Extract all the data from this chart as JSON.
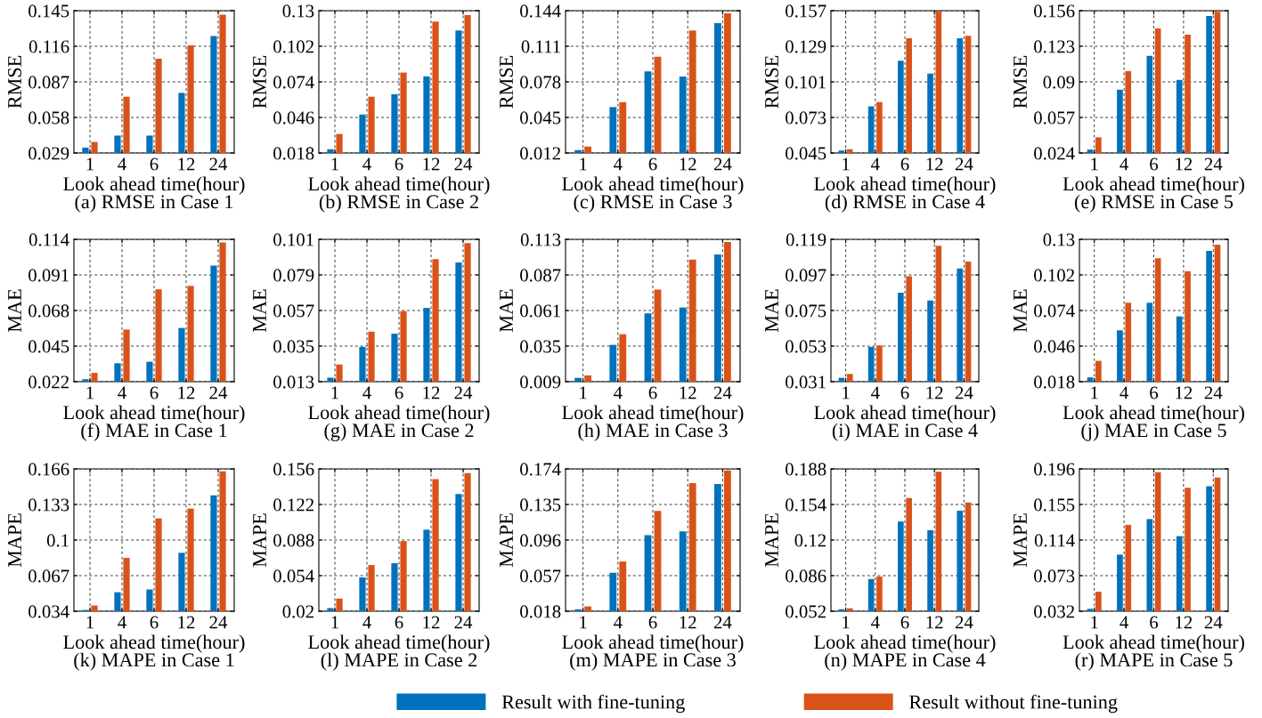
{
  "chart_data": [
    {
      "type": "bar",
      "title": "(a) RMSE in Case 1",
      "xlabel": "Look ahead time(hour)",
      "ylabel": "RMSE",
      "categories": [
        "1",
        "4",
        "6",
        "12",
        "24"
      ],
      "ylim": [
        0.029,
        0.145
      ],
      "yticks": [
        0.029,
        0.058,
        0.087,
        0.116,
        0.145
      ],
      "grid": true,
      "legend": "bottom",
      "series": [
        {
          "name": "Result with fine-tuning",
          "color": "#0072bd",
          "values": [
            0.0334,
            0.0432,
            0.0432,
            0.078,
            0.1244
          ]
        },
        {
          "name": "Result without fine-tuning",
          "color": "#d95319",
          "values": [
            0.038,
            0.0749,
            0.1059,
            0.1167,
            0.1417
          ]
        }
      ]
    },
    {
      "type": "bar",
      "title": "(b) RMSE in Case 2",
      "xlabel": "Look ahead time(hour)",
      "ylabel": "RMSE",
      "categories": [
        "1",
        "4",
        "6",
        "12",
        "24"
      ],
      "ylim": [
        0.018,
        0.13
      ],
      "yticks": [
        0.018,
        0.046,
        0.074,
        0.102,
        0.13
      ],
      "grid": true,
      "series": [
        {
          "color": "#0072bd",
          "values": [
            0.021,
            0.0483,
            0.0643,
            0.0783,
            0.1145
          ]
        },
        {
          "color": "#d95319",
          "values": [
            0.033,
            0.0623,
            0.0813,
            0.1215,
            0.1265
          ]
        }
      ]
    },
    {
      "type": "bar",
      "title": "(c) RMSE in Case 3",
      "xlabel": "Look ahead time(hour)",
      "ylabel": "RMSE",
      "categories": [
        "1",
        "4",
        "6",
        "12",
        "24"
      ],
      "ylim": [
        0.012,
        0.144
      ],
      "yticks": [
        0.012,
        0.045,
        0.078,
        0.111,
        0.144
      ],
      "grid": true,
      "series": [
        {
          "color": "#0072bd",
          "values": [
            0.0147,
            0.0546,
            0.0876,
            0.083,
            0.1325
          ]
        },
        {
          "color": "#d95319",
          "values": [
            0.018,
            0.0592,
            0.1013,
            0.1256,
            0.1416
          ]
        }
      ]
    },
    {
      "type": "bar",
      "title": "(d) RMSE in Case 4",
      "xlabel": "Look ahead time(hour)",
      "ylabel": "RMSE",
      "categories": [
        "1",
        "4",
        "6",
        "12",
        "24"
      ],
      "ylim": [
        0.045,
        0.157
      ],
      "yticks": [
        0.045,
        0.073,
        0.101,
        0.129,
        0.157
      ],
      "grid": true,
      "series": [
        {
          "color": "#0072bd",
          "values": [
            0.047,
            0.0817,
            0.1176,
            0.1075,
            0.1353
          ]
        },
        {
          "color": "#d95319",
          "values": [
            0.048,
            0.0851,
            0.1353,
            0.1565,
            0.1373
          ]
        }
      ]
    },
    {
      "type": "bar",
      "title": "(e) RMSE in Case 5",
      "xlabel": "Look ahead time(hour)",
      "ylabel": "RMSE",
      "categories": [
        "1",
        "4",
        "6",
        "12",
        "24"
      ],
      "ylim": [
        0.024,
        0.156
      ],
      "yticks": [
        0.024,
        0.057,
        0.09,
        0.123,
        0.156
      ],
      "grid": true,
      "series": [
        {
          "color": "#0072bd",
          "values": [
            0.0272,
            0.0827,
            0.1141,
            0.0918,
            0.151
          ]
        },
        {
          "color": "#d95319",
          "values": [
            0.0386,
            0.1,
            0.1396,
            0.1337,
            0.155
          ]
        }
      ]
    },
    {
      "type": "bar",
      "title": "(f) MAE in Case 1",
      "xlabel": "Look ahead time(hour)",
      "ylabel": "MAE",
      "categories": [
        "1",
        "4",
        "6",
        "12",
        "24"
      ],
      "ylim": [
        0.022,
        0.114
      ],
      "yticks": [
        0.022,
        0.045,
        0.068,
        0.091,
        0.114
      ],
      "grid": true,
      "series": [
        {
          "color": "#0072bd",
          "values": [
            0.0236,
            0.0339,
            0.0349,
            0.0567,
            0.097
          ]
        },
        {
          "color": "#d95319",
          "values": [
            0.0277,
            0.0557,
            0.0817,
            0.0839,
            0.112
          ]
        }
      ]
    },
    {
      "type": "bar",
      "title": "(g) MAE in Case 2",
      "xlabel": "Look ahead time(hour)",
      "ylabel": "MAE",
      "categories": [
        "1",
        "4",
        "6",
        "12",
        "24"
      ],
      "ylim": [
        0.013,
        0.101
      ],
      "yticks": [
        0.013,
        0.035,
        0.057,
        0.079,
        0.101
      ],
      "grid": true,
      "series": [
        {
          "color": "#0072bd",
          "values": [
            0.0155,
            0.0345,
            0.0427,
            0.0586,
            0.0867
          ]
        },
        {
          "color": "#d95319",
          "values": [
            0.0236,
            0.0439,
            0.0566,
            0.0887,
            0.0987
          ]
        }
      ]
    },
    {
      "type": "bar",
      "title": "(h) MAE in Case 3",
      "xlabel": "Look ahead time(hour)",
      "ylabel": "MAE",
      "categories": [
        "1",
        "4",
        "6",
        "12",
        "24"
      ],
      "ylim": [
        0.009,
        0.113
      ],
      "yticks": [
        0.009,
        0.035,
        0.061,
        0.087,
        0.113
      ],
      "grid": true,
      "series": [
        {
          "color": "#0072bd",
          "values": [
            0.0118,
            0.0359,
            0.0589,
            0.0632,
            0.102
          ]
        },
        {
          "color": "#d95319",
          "values": [
            0.0136,
            0.0437,
            0.0763,
            0.0982,
            0.111
          ]
        }
      ]
    },
    {
      "type": "bar",
      "title": "(i) MAE in Case 4",
      "xlabel": "Look ahead time(hour)",
      "ylabel": "MAE",
      "categories": [
        "1",
        "4",
        "6",
        "12",
        "24"
      ],
      "ylim": [
        0.031,
        0.119
      ],
      "yticks": [
        0.031,
        0.053,
        0.075,
        0.097,
        0.119
      ],
      "grid": true,
      "series": [
        {
          "color": "#0072bd",
          "values": [
            0.0334,
            0.0525,
            0.086,
            0.0812,
            0.101
          ]
        },
        {
          "color": "#d95319",
          "values": [
            0.0358,
            0.0534,
            0.0962,
            0.115,
            0.1052
          ]
        }
      ]
    },
    {
      "type": "bar",
      "title": "(j) MAE in Case 5",
      "xlabel": "Look ahead time(hour)",
      "ylabel": "MAE",
      "categories": [
        "1",
        "4",
        "6",
        "12",
        "24"
      ],
      "ylim": [
        0.018,
        0.13
      ],
      "yticks": [
        0.018,
        0.046,
        0.074,
        0.102,
        0.13
      ],
      "grid": true,
      "series": [
        {
          "color": "#0072bd",
          "values": [
            0.0214,
            0.0584,
            0.0801,
            0.0694,
            0.1209
          ]
        },
        {
          "color": "#d95319",
          "values": [
            0.0344,
            0.0801,
            0.1152,
            0.1049,
            0.1258
          ]
        }
      ]
    },
    {
      "type": "bar",
      "title": "(k) MAPE in Case 1",
      "xlabel": "Look ahead time(hour)",
      "ylabel": "MAPE",
      "categories": [
        "1",
        "4",
        "6",
        "12",
        "24"
      ],
      "ylim": [
        0.034,
        0.166
      ],
      "yticks": [
        0.034,
        0.067,
        0.1,
        0.133,
        0.166
      ],
      "grid": true,
      "series": [
        {
          "color": "#0072bd",
          "values": [
            0.0352,
            0.0516,
            0.0542,
            0.0882,
            0.1415
          ]
        },
        {
          "color": "#d95319",
          "values": [
            0.0393,
            0.0835,
            0.1201,
            0.1292,
            0.1637
          ]
        }
      ]
    },
    {
      "type": "bar",
      "title": "(l) MAPE in Case 2",
      "xlabel": "Look ahead time(hour)",
      "ylabel": "MAPE",
      "categories": [
        "1",
        "4",
        "6",
        "12",
        "24"
      ],
      "ylim": [
        0.02,
        0.156
      ],
      "yticks": [
        0.02,
        0.054,
        0.088,
        0.122,
        0.156
      ],
      "grid": true,
      "series": [
        {
          "color": "#0072bd",
          "values": [
            0.023,
            0.0523,
            0.0659,
            0.0979,
            0.132
          ]
        },
        {
          "color": "#d95319",
          "values": [
            0.0321,
            0.0641,
            0.087,
            0.1462,
            0.152
          ]
        }
      ]
    },
    {
      "type": "bar",
      "title": "(m) MAPE in Case 3",
      "xlabel": "Look ahead time(hour)",
      "ylabel": "MAPE",
      "categories": [
        "1",
        "4",
        "6",
        "12",
        "24"
      ],
      "ylim": [
        0.018,
        0.174
      ],
      "yticks": [
        0.018,
        0.057,
        0.096,
        0.135,
        0.174
      ],
      "grid": true,
      "series": [
        {
          "color": "#0072bd",
          "values": [
            0.0201,
            0.0602,
            0.1013,
            0.1056,
            0.1574
          ]
        },
        {
          "color": "#d95319",
          "values": [
            0.0233,
            0.0725,
            0.128,
            0.1585,
            0.1724
          ]
        }
      ]
    },
    {
      "type": "bar",
      "title": "(n) MAPE in Case 4",
      "xlabel": "Look ahead time(hour)",
      "ylabel": "MAPE",
      "categories": [
        "1",
        "4",
        "6",
        "12",
        "24"
      ],
      "ylim": [
        0.052,
        0.188
      ],
      "yticks": [
        0.052,
        0.086,
        0.12,
        0.154,
        0.188
      ],
      "grid": true,
      "series": [
        {
          "color": "#0072bd",
          "values": [
            0.0539,
            0.0828,
            0.1377,
            0.1294,
            0.148
          ]
        },
        {
          "color": "#d95319",
          "values": [
            0.0548,
            0.0851,
            0.1601,
            0.1853,
            0.1559
          ]
        }
      ]
    },
    {
      "type": "bar",
      "title": "(r) MAPE in Case 5",
      "xlabel": "Look ahead time(hour)",
      "ylabel": "MAPE",
      "categories": [
        "1",
        "4",
        "6",
        "12",
        "24"
      ],
      "ylim": [
        0.032,
        0.196
      ],
      "yticks": [
        0.032,
        0.073,
        0.114,
        0.155,
        0.196
      ],
      "grid": true,
      "series": [
        {
          "color": "#0072bd",
          "values": [
            0.0348,
            0.0972,
            0.1382,
            0.1185,
            0.1759
          ]
        },
        {
          "color": "#d95319",
          "values": [
            0.0545,
            0.1315,
            0.1922,
            0.1742,
            0.186
          ]
        }
      ]
    }
  ]
}
